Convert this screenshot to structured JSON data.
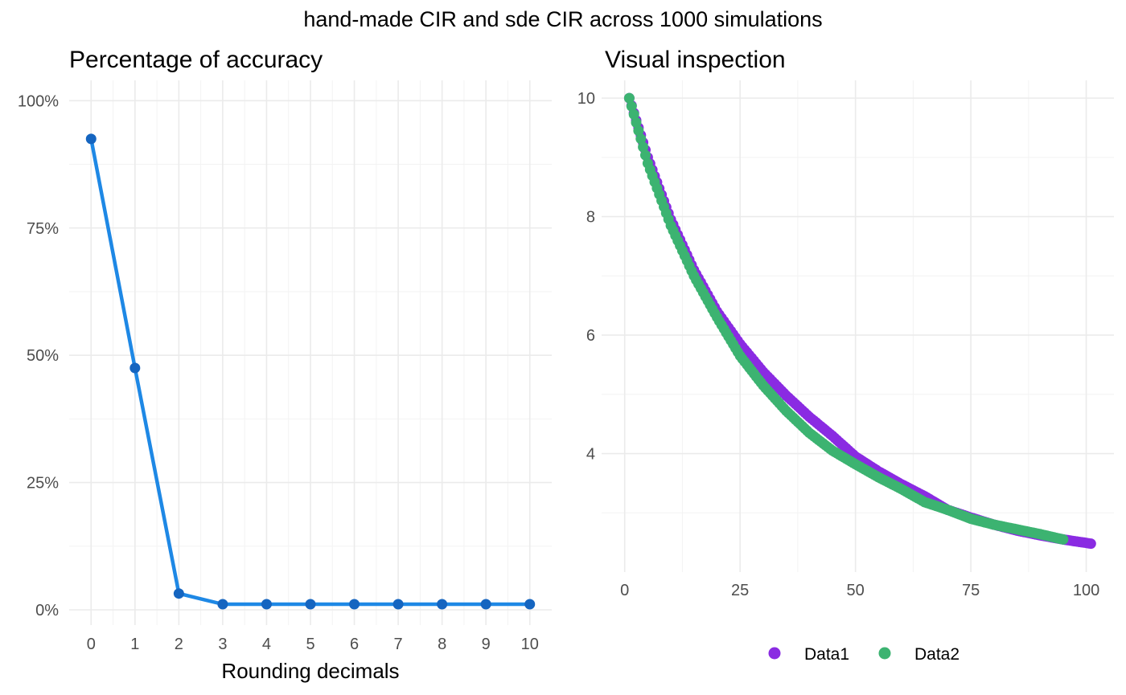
{
  "figure": {
    "suptitle": "hand-made CIR and sde CIR across 1000 simulations"
  },
  "chart_data": [
    {
      "type": "line",
      "title": "Percentage of accuracy",
      "xlabel": "Rounding decimals",
      "ylabel": "",
      "x": [
        0,
        1,
        2,
        3,
        4,
        5,
        6,
        7,
        8,
        9,
        10
      ],
      "y": [
        92.5,
        47.5,
        3.2,
        1.1,
        1.1,
        1.1,
        1.1,
        1.1,
        1.1,
        1.1,
        1.1
      ],
      "xlim": [
        -0.5,
        10.5
      ],
      "ylim": [
        -3,
        104
      ],
      "x_ticks": [
        "0",
        "1",
        "2",
        "3",
        "4",
        "5",
        "6",
        "7",
        "8",
        "9",
        "10"
      ],
      "y_ticks": [
        "0%",
        "25%",
        "50%",
        "75%",
        "100%"
      ],
      "y_tick_values": [
        0,
        25,
        50,
        75,
        100
      ],
      "color": "#1e88e5",
      "grid": true
    },
    {
      "type": "scatter",
      "title": "Visual inspection",
      "xlabel": "",
      "ylabel": "",
      "xlim": [
        -5,
        106
      ],
      "ylim": [
        2.0,
        10.3
      ],
      "x_ticks": [
        "0",
        "25",
        "50",
        "75",
        "100"
      ],
      "x_tick_values": [
        0,
        25,
        50,
        75,
        100
      ],
      "y_ticks": [
        "4",
        "6",
        "8",
        "10"
      ],
      "y_tick_values": [
        4,
        6,
        8,
        10
      ],
      "legend_position": "bottom",
      "grid": true,
      "series": [
        {
          "name": "Data1",
          "color": "#8a2be2",
          "x": [
            1,
            5,
            10,
            15,
            20,
            25,
            30,
            35,
            40,
            45,
            50,
            55,
            60,
            65,
            70,
            75,
            80,
            85,
            90,
            95,
            101
          ],
          "y": [
            10.0,
            9.0,
            7.95,
            7.1,
            6.4,
            5.85,
            5.38,
            4.98,
            4.62,
            4.3,
            3.95,
            3.7,
            3.48,
            3.28,
            3.05,
            2.92,
            2.8,
            2.7,
            2.62,
            2.55,
            2.48
          ]
        },
        {
          "name": "Data2",
          "color": "#3cb371",
          "x": [
            1,
            5,
            10,
            15,
            20,
            25,
            30,
            35,
            40,
            45,
            50,
            55,
            60,
            65,
            70,
            75,
            80,
            85,
            90,
            95
          ],
          "y": [
            10.0,
            8.9,
            7.85,
            7.0,
            6.3,
            5.65,
            5.15,
            4.72,
            4.35,
            4.05,
            3.82,
            3.6,
            3.4,
            3.18,
            3.05,
            2.9,
            2.8,
            2.72,
            2.64,
            2.55
          ]
        }
      ]
    }
  ]
}
